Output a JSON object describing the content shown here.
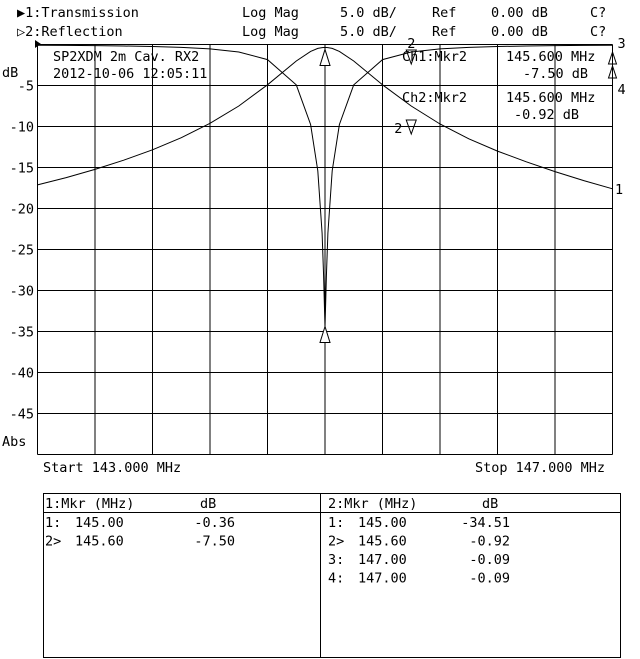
{
  "header": {
    "ch1": {
      "label": "▶1:Transmission",
      "format": "Log Mag",
      "scale": "5.0 dB/",
      "ref_label": "Ref",
      "ref_value": "0.00 dB",
      "cal": "C?"
    },
    "ch2": {
      "label": "▷2:Reflection",
      "format": "Log Mag",
      "scale": "5.0 dB/",
      "ref_label": "Ref",
      "ref_value": "0.00 dB",
      "cal": "C?"
    }
  },
  "annotation": {
    "title": "SP2XDM 2m Cav. RX2",
    "datetime": "2012-10-06 12:05:11",
    "ch1_marker": {
      "label": "Ch1:Mkr2",
      "freq": "145.600 MHz",
      "value": "-7.50 dB"
    },
    "ch2_marker": {
      "label": "Ch2:Mkr2",
      "freq": "145.600 MHz",
      "value": "-0.92 dB"
    }
  },
  "axis": {
    "unit_top": "dB",
    "unit_bottom": "Abs",
    "y_ticks": [
      "-5",
      "-10",
      "-15",
      "-20",
      "-25",
      "-30",
      "-35",
      "-40",
      "-45"
    ],
    "start": "Start 143.000 MHz",
    "stop": "Stop 147.000 MHz"
  },
  "chart_data": {
    "type": "line",
    "xlim": [
      143.0,
      147.0
    ],
    "ylim": [
      -50,
      0
    ],
    "x_unit": "MHz",
    "y_unit": "dB",
    "grid": true,
    "x": [
      143,
      143.2,
      143.4,
      143.6,
      143.8,
      144,
      144.2,
      144.4,
      144.6,
      144.8,
      144.9,
      144.95,
      144.98,
      144.99,
      145,
      145.01,
      145.02,
      145.05,
      145.1,
      145.2,
      145.4,
      145.6,
      145.8,
      146,
      146.2,
      146.4,
      146.6,
      146.8,
      147
    ],
    "series": [
      {
        "name": "1",
        "values": [
          -17.12,
          -16.23,
          -15.23,
          -14.11,
          -12.84,
          -11.36,
          -9.61,
          -7.5,
          -4.92,
          -2.01,
          -0.84,
          -0.48,
          -0.38,
          -0.37,
          -0.36,
          -0.37,
          -0.38,
          -0.48,
          -0.84,
          -2.01,
          -4.92,
          -7.5,
          -9.7,
          -11.5,
          -13.0,
          -14.3,
          -15.5,
          -16.6,
          -17.6
        ]
      },
      {
        "name": "2",
        "values": [
          -0.09,
          -0.11,
          -0.14,
          -0.18,
          -0.25,
          -0.35,
          -0.54,
          -0.92,
          -1.84,
          -4.93,
          -9.75,
          -15.4,
          -23.0,
          -28.2,
          -34.51,
          -28.2,
          -23.0,
          -15.4,
          -9.75,
          -4.93,
          -1.84,
          -0.92,
          -0.54,
          -0.35,
          -0.25,
          -0.18,
          -0.14,
          -0.11,
          -0.09
        ]
      }
    ],
    "markers": [
      {
        "trace": "1",
        "id": "1",
        "x": 145.0,
        "y": -0.36
      },
      {
        "trace": "1",
        "id": "2",
        "x": 145.6,
        "y": -7.5
      },
      {
        "trace": "2",
        "id": "1",
        "x": 145.0,
        "y": -34.51
      },
      {
        "trace": "2",
        "id": "2",
        "x": 145.6,
        "y": -0.92
      },
      {
        "trace": "2",
        "id": "3",
        "x": 147.0,
        "y": -0.09
      },
      {
        "trace": "2",
        "id": "4",
        "x": 147.0,
        "y": -0.09
      }
    ]
  },
  "marker_table": {
    "ch1": {
      "header_mkr": "1:Mkr (MHz)",
      "header_db": "dB",
      "rows": [
        {
          "id": "1:",
          "freq": "145.00",
          "db": "-0.36"
        },
        {
          "id": "2>",
          "freq": "145.60",
          "db": "-7.50"
        }
      ]
    },
    "ch2": {
      "header_mkr": "2:Mkr (MHz)",
      "header_db": "dB",
      "rows": [
        {
          "id": "1:",
          "freq": "145.00",
          "db": "-34.51"
        },
        {
          "id": "2>",
          "freq": "145.60",
          "db": "-0.92"
        },
        {
          "id": "3:",
          "freq": "147.00",
          "db": "-0.09"
        },
        {
          "id": "4:",
          "freq": "147.00",
          "db": "-0.09"
        }
      ]
    }
  }
}
